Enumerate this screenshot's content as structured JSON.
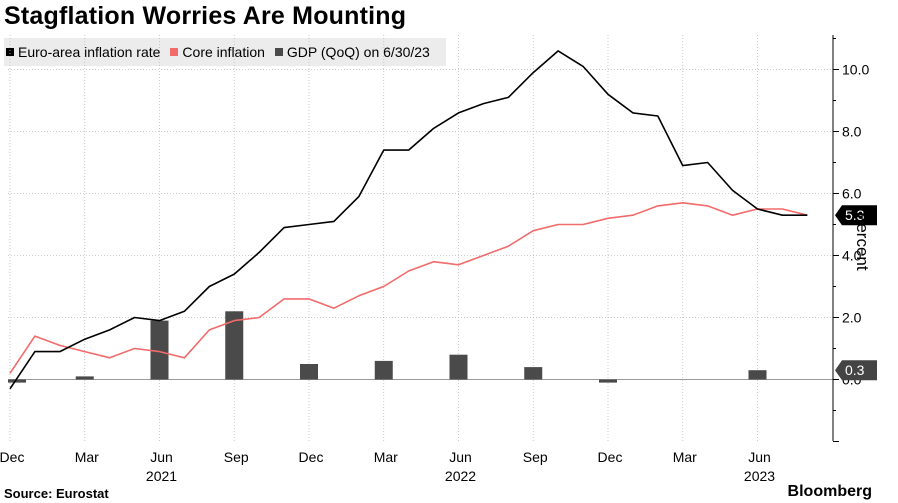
{
  "header": {
    "title": "Stagflation Worries Are Mounting"
  },
  "colors": {
    "inflation": "#000000",
    "core": "#f26b6b",
    "gdp": "#4a4a4a",
    "grid": "#bdbdbd",
    "legend_bg": "#ececec"
  },
  "legend": [
    {
      "label": "Euro-area inflation rate"
    },
    {
      "label": "Core inflation"
    },
    {
      "label": "GDP (QoQ) on 6/30/23"
    }
  ],
  "footer": {
    "source": "Source: Eurostat",
    "brand": "Bloomberg"
  },
  "chart_data": {
    "type": "line",
    "title": "Stagflation Worries Are Mounting",
    "ylabel": "Percent",
    "xlabel": "",
    "ylim": [
      -2,
      11
    ],
    "yticks": [
      0,
      2,
      4,
      6,
      8,
      10
    ],
    "ytick_labels": [
      "0.0",
      "2.0",
      "4.0",
      "6.0",
      "8.0",
      "10.0"
    ],
    "x_start": "2020-12",
    "x_tick_months": [
      0,
      3,
      6,
      9,
      12,
      15,
      18,
      21,
      24,
      27,
      30
    ],
    "x_tick_labels": [
      "Dec",
      "Mar",
      "Jun",
      "Sep",
      "Dec",
      "Mar",
      "Jun",
      "Sep",
      "Dec",
      "Mar",
      "Jun"
    ],
    "year_labels": [
      {
        "label": "2021",
        "month": 6
      },
      {
        "label": "2022",
        "month": 18
      },
      {
        "label": "2023",
        "month": 30
      }
    ],
    "series": [
      {
        "name": "Euro-area inflation rate",
        "type": "line",
        "values": [
          -0.3,
          0.9,
          0.9,
          1.3,
          1.6,
          2.0,
          1.9,
          2.2,
          3.0,
          3.4,
          4.1,
          4.9,
          5.0,
          5.1,
          5.9,
          7.4,
          7.4,
          8.1,
          8.6,
          8.9,
          9.1,
          9.9,
          10.6,
          10.1,
          9.2,
          8.6,
          8.5,
          6.9,
          7.0,
          6.1,
          5.5,
          5.3,
          5.3
        ]
      },
      {
        "name": "Core inflation",
        "type": "line",
        "values": [
          0.2,
          1.4,
          1.1,
          0.9,
          0.7,
          1.0,
          0.9,
          0.7,
          1.6,
          1.9,
          2.0,
          2.6,
          2.6,
          2.3,
          2.7,
          3.0,
          3.5,
          3.8,
          3.7,
          4.0,
          4.3,
          4.8,
          5.0,
          5.0,
          5.2,
          5.3,
          5.6,
          5.7,
          5.6,
          5.3,
          5.5,
          5.5,
          5.3
        ]
      },
      {
        "name": "GDP (QoQ)",
        "type": "bar",
        "months": [
          0,
          3,
          6,
          9,
          12,
          15,
          18,
          21,
          24,
          27,
          30
        ],
        "values": [
          -0.1,
          0.1,
          1.9,
          2.2,
          0.5,
          0.6,
          0.8,
          0.4,
          -0.1,
          0.0,
          0.3
        ]
      }
    ],
    "end_labels": [
      {
        "series": "Euro-area inflation rate",
        "text": "5.3",
        "value": 5.3
      },
      {
        "series": "GDP (QoQ)",
        "text": "0.3",
        "value": 0.3
      }
    ]
  }
}
